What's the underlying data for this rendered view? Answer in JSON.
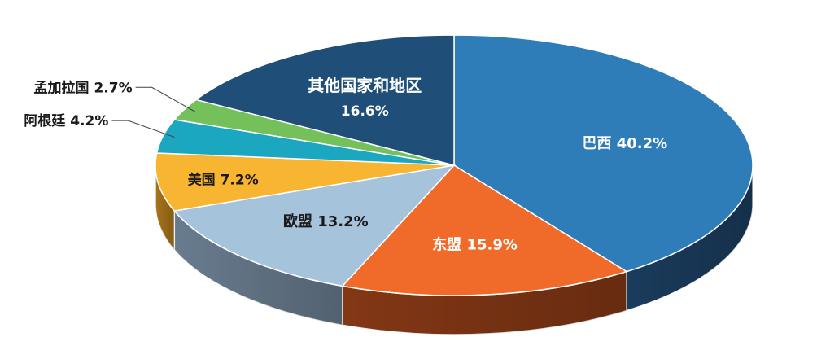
{
  "chart_data": {
    "type": "pie",
    "title": "",
    "style": "3d",
    "slices": [
      {
        "name": "巴西",
        "value": 40.2,
        "label": "40.2%",
        "color": "#2E7CB8",
        "side_color": "#1C3F62",
        "text_color": "#ffffff"
      },
      {
        "name": "东盟",
        "value": 15.9,
        "label": "15.9%",
        "color": "#F06B2A",
        "side_color": "#8A3A16",
        "text_color": "#ffffff"
      },
      {
        "name": "欧盟",
        "value": 13.2,
        "label": "13.2%",
        "color": "#A6C3DC",
        "side_color": "#6E8296",
        "text_color": "#1a1a1a"
      },
      {
        "name": "美国",
        "value": 7.2,
        "label": "7.2%",
        "color": "#F7B531",
        "side_color": "#B07A1A",
        "text_color": "#1a1a1a"
      },
      {
        "name": "阿根廷",
        "value": 4.2,
        "label": "4.2%",
        "color": "#1AA7BF",
        "side_color": "#107080",
        "text_color": "#1a1a1a"
      },
      {
        "name": "孟加拉国",
        "value": 2.7,
        "label": "2.7%",
        "color": "#74C05A",
        "side_color": "#4E8A3A",
        "text_color": "#1a1a1a"
      },
      {
        "name": "其他国家和地区",
        "value": 16.6,
        "label": "16.6%",
        "color": "#1F4E79",
        "side_color": "#132F4A",
        "text_color": "#ffffff"
      }
    ]
  }
}
